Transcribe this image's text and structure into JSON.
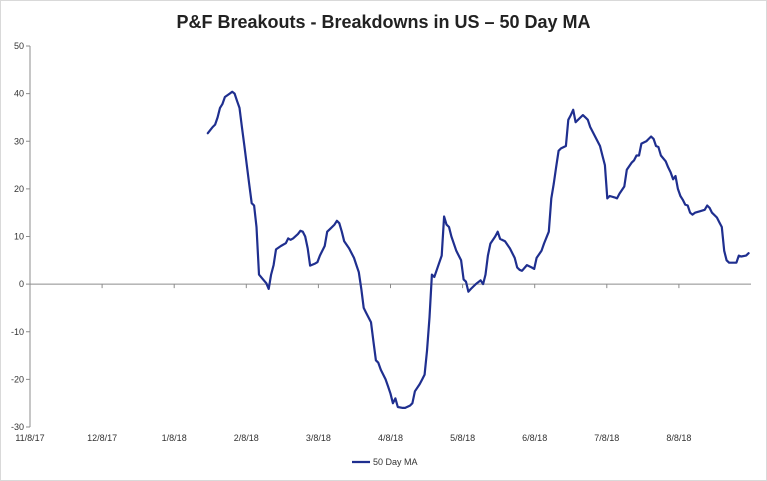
{
  "chart_data": {
    "type": "line",
    "title": "P&F Breakouts - Breakdowns in US – 50 Day MA",
    "xlabel": "",
    "ylabel": "",
    "ylim": [
      -30,
      50
    ],
    "yticks": [
      50,
      40,
      30,
      20,
      10,
      0,
      -10,
      -20,
      -30
    ],
    "xlim": [
      "2017-11-08",
      "2018-08-31"
    ],
    "xticks": [
      "11/8/17",
      "12/8/17",
      "1/8/18",
      "2/8/18",
      "3/8/18",
      "4/8/18",
      "5/8/18",
      "6/8/18",
      "7/8/18",
      "8/8/18"
    ],
    "grid": false,
    "legend": "bottom",
    "series": [
      {
        "name": "50 Day MA",
        "color": "#1f2f8f",
        "points": [
          [
            "2018-01-20",
            31.7
          ],
          [
            "2018-01-22",
            33.0
          ],
          [
            "2018-01-23",
            33.5
          ],
          [
            "2018-01-24",
            35.0
          ],
          [
            "2018-01-25",
            37.0
          ],
          [
            "2018-01-26",
            37.8
          ],
          [
            "2018-01-27",
            39.3
          ],
          [
            "2018-01-29",
            40.0
          ],
          [
            "2018-01-30",
            40.4
          ],
          [
            "2018-01-31",
            40.0
          ],
          [
            "2018-02-01",
            38.5
          ],
          [
            "2018-02-02",
            37.0
          ],
          [
            "2018-02-03",
            33.0
          ],
          [
            "2018-02-04",
            29.0
          ],
          [
            "2018-02-05",
            25.0
          ],
          [
            "2018-02-06",
            21.0
          ],
          [
            "2018-02-07",
            17.0
          ],
          [
            "2018-02-08",
            16.5
          ],
          [
            "2018-02-09",
            12.0
          ],
          [
            "2018-02-10",
            2.0
          ],
          [
            "2018-02-12",
            0.8
          ],
          [
            "2018-02-13",
            0.2
          ],
          [
            "2018-02-14",
            -1.0
          ],
          [
            "2018-02-15",
            2.0
          ],
          [
            "2018-02-16",
            4.0
          ],
          [
            "2018-02-17",
            7.3
          ],
          [
            "2018-02-19",
            8.0
          ],
          [
            "2018-02-21",
            8.6
          ],
          [
            "2018-02-22",
            9.6
          ],
          [
            "2018-02-23",
            9.3
          ],
          [
            "2018-02-24",
            9.6
          ],
          [
            "2018-02-26",
            10.5
          ],
          [
            "2018-02-27",
            11.2
          ],
          [
            "2018-02-28",
            11.0
          ],
          [
            "2018-03-01",
            10.0
          ],
          [
            "2018-03-02",
            7.5
          ],
          [
            "2018-03-03",
            3.9
          ],
          [
            "2018-03-05",
            4.3
          ],
          [
            "2018-03-06",
            4.6
          ],
          [
            "2018-03-07",
            6.0
          ],
          [
            "2018-03-09",
            8.0
          ],
          [
            "2018-03-10",
            11.0
          ],
          [
            "2018-03-11",
            11.5
          ],
          [
            "2018-03-13",
            12.5
          ],
          [
            "2018-03-14",
            13.3
          ],
          [
            "2018-03-15",
            12.8
          ],
          [
            "2018-03-16",
            11.0
          ],
          [
            "2018-03-17",
            9.0
          ],
          [
            "2018-03-19",
            7.5
          ],
          [
            "2018-03-21",
            5.5
          ],
          [
            "2018-03-22",
            4.0
          ],
          [
            "2018-03-23",
            2.5
          ],
          [
            "2018-03-24",
            -1.0
          ],
          [
            "2018-03-25",
            -5.0
          ],
          [
            "2018-03-26",
            -6.0
          ],
          [
            "2018-03-28",
            -8.0
          ],
          [
            "2018-03-29",
            -12.0
          ],
          [
            "2018-03-30",
            -16.0
          ],
          [
            "2018-03-31",
            -16.5
          ],
          [
            "2018-04-01",
            -18.0
          ],
          [
            "2018-04-03",
            -20.0
          ],
          [
            "2018-04-04",
            -21.5
          ],
          [
            "2018-04-05",
            -23.0
          ],
          [
            "2018-04-06",
            -25.0
          ],
          [
            "2018-04-07",
            -24.0
          ],
          [
            "2018-04-08",
            -25.8
          ],
          [
            "2018-04-10",
            -26.0
          ],
          [
            "2018-04-11",
            -26.0
          ],
          [
            "2018-04-13",
            -25.5
          ],
          [
            "2018-04-14",
            -25.0
          ],
          [
            "2018-04-15",
            -22.5
          ],
          [
            "2018-04-17",
            -21.0
          ],
          [
            "2018-04-18",
            -20.0
          ],
          [
            "2018-04-19",
            -19.0
          ],
          [
            "2018-04-20",
            -14.0
          ],
          [
            "2018-04-21",
            -7.0
          ],
          [
            "2018-04-22",
            2.0
          ],
          [
            "2018-04-23",
            1.5
          ],
          [
            "2018-04-24",
            3.0
          ],
          [
            "2018-04-26",
            6.0
          ],
          [
            "2018-04-27",
            14.2
          ],
          [
            "2018-04-28",
            12.5
          ],
          [
            "2018-04-29",
            12.0
          ],
          [
            "2018-04-30",
            10.0
          ],
          [
            "2018-05-02",
            7.0
          ],
          [
            "2018-05-04",
            5.0
          ],
          [
            "2018-05-05",
            1.0
          ],
          [
            "2018-05-06",
            0.5
          ],
          [
            "2018-05-07",
            -1.6
          ],
          [
            "2018-05-08",
            -1.0
          ],
          [
            "2018-05-10",
            0.0
          ],
          [
            "2018-05-12",
            0.8
          ],
          [
            "2018-05-13",
            0.0
          ],
          [
            "2018-05-14",
            2.0
          ],
          [
            "2018-05-15",
            6.0
          ],
          [
            "2018-05-16",
            8.5
          ],
          [
            "2018-05-18",
            10.0
          ],
          [
            "2018-05-19",
            11.0
          ],
          [
            "2018-05-20",
            9.5
          ],
          [
            "2018-05-22",
            9.0
          ],
          [
            "2018-05-24",
            7.5
          ],
          [
            "2018-05-26",
            5.5
          ],
          [
            "2018-05-27",
            3.5
          ],
          [
            "2018-05-28",
            3.0
          ],
          [
            "2018-05-29",
            2.8
          ],
          [
            "2018-05-31",
            4.0
          ],
          [
            "2018-06-02",
            3.5
          ],
          [
            "2018-06-03",
            3.2
          ],
          [
            "2018-06-04",
            5.5
          ],
          [
            "2018-06-06",
            7.0
          ],
          [
            "2018-06-07",
            8.5
          ],
          [
            "2018-06-09",
            11.0
          ],
          [
            "2018-06-10",
            18.0
          ],
          [
            "2018-06-11",
            21.0
          ],
          [
            "2018-06-12",
            24.5
          ],
          [
            "2018-06-13",
            28.0
          ],
          [
            "2018-06-14",
            28.5
          ],
          [
            "2018-06-16",
            29.0
          ],
          [
            "2018-06-17",
            34.5
          ],
          [
            "2018-06-18",
            35.5
          ],
          [
            "2018-06-19",
            36.6
          ],
          [
            "2018-06-20",
            34.0
          ],
          [
            "2018-06-22",
            35.0
          ],
          [
            "2018-06-23",
            35.5
          ],
          [
            "2018-06-24",
            35.0
          ],
          [
            "2018-06-25",
            34.5
          ],
          [
            "2018-06-26",
            33.0
          ],
          [
            "2018-06-28",
            31.0
          ],
          [
            "2018-06-30",
            29.0
          ],
          [
            "2018-07-01",
            27.0
          ],
          [
            "2018-07-02",
            25.0
          ],
          [
            "2018-07-03",
            18.0
          ],
          [
            "2018-07-04",
            18.5
          ],
          [
            "2018-07-06",
            18.2
          ],
          [
            "2018-07-07",
            18.0
          ],
          [
            "2018-07-08",
            19.0
          ],
          [
            "2018-07-10",
            20.5
          ],
          [
            "2018-07-11",
            24.0
          ],
          [
            "2018-07-13",
            25.5
          ],
          [
            "2018-07-14",
            26.0
          ],
          [
            "2018-07-15",
            27.0
          ],
          [
            "2018-07-16",
            27.0
          ],
          [
            "2018-07-17",
            29.5
          ],
          [
            "2018-07-19",
            30.0
          ],
          [
            "2018-07-20",
            30.5
          ],
          [
            "2018-07-21",
            31.0
          ],
          [
            "2018-07-22",
            30.5
          ],
          [
            "2018-07-23",
            29.0
          ],
          [
            "2018-07-24",
            28.8
          ],
          [
            "2018-07-25",
            27.0
          ],
          [
            "2018-07-27",
            25.8
          ],
          [
            "2018-07-28",
            24.5
          ],
          [
            "2018-07-29",
            23.5
          ],
          [
            "2018-07-30",
            22.0
          ],
          [
            "2018-07-31",
            22.7
          ],
          [
            "2018-08-01",
            20.0
          ],
          [
            "2018-08-02",
            18.5
          ],
          [
            "2018-08-03",
            17.7
          ],
          [
            "2018-08-04",
            16.7
          ],
          [
            "2018-08-05",
            16.5
          ],
          [
            "2018-08-06",
            15.0
          ],
          [
            "2018-08-07",
            14.6
          ],
          [
            "2018-08-08",
            15.0
          ],
          [
            "2018-08-10",
            15.3
          ],
          [
            "2018-08-12",
            15.6
          ],
          [
            "2018-08-13",
            16.5
          ],
          [
            "2018-08-14",
            16.0
          ],
          [
            "2018-08-15",
            15.0
          ],
          [
            "2018-08-17",
            14.0
          ],
          [
            "2018-08-18",
            13.0
          ],
          [
            "2018-08-19",
            12.0
          ],
          [
            "2018-08-20",
            7.0
          ],
          [
            "2018-08-21",
            5.0
          ],
          [
            "2018-08-22",
            4.5
          ],
          [
            "2018-08-24",
            4.5
          ],
          [
            "2018-08-25",
            4.5
          ],
          [
            "2018-08-26",
            6.0
          ],
          [
            "2018-08-27",
            5.8
          ],
          [
            "2018-08-29",
            6.0
          ],
          [
            "2018-08-30",
            6.5
          ]
        ]
      }
    ]
  }
}
